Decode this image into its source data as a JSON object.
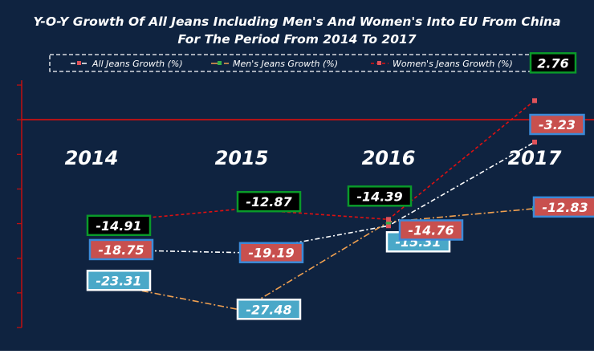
{
  "chart_data": {
    "type": "line",
    "title": "Y-O-Y Growth Of All Jeans Including Men's And Women's Into EU From China",
    "subtitle": "For The Period From 2014 To 2017",
    "xlabel": "",
    "ylabel": "",
    "categories": [
      "2014",
      "2015",
      "2016",
      "2017"
    ],
    "ylim": [
      -30,
      5
    ],
    "grid": false,
    "legend_position": "top",
    "series": [
      {
        "name": "All Jeans Growth (%)",
        "values": [
          -18.75,
          -19.19,
          -15.31,
          -3.23
        ],
        "labels": [
          "-18.75",
          "-19.19",
          "-15.31",
          "-3.23"
        ],
        "color": "#ffffff",
        "marker_color": "#e0535a"
      },
      {
        "name": "Men's Jeans Growth (%)",
        "values": [
          -23.31,
          -27.48,
          -14.76,
          -12.83
        ],
        "labels": [
          "-23.31",
          "-27.48",
          "-14.76",
          "-12.83"
        ],
        "color": "#f0a050",
        "marker_color": "#35b04a"
      },
      {
        "name": "Women's Jeans Growth (%)",
        "values": [
          -14.91,
          -12.87,
          -14.39,
          2.76
        ],
        "labels": [
          "-14.91",
          "-12.87",
          "-14.39",
          "2.76"
        ],
        "color": "#e01010",
        "marker_color": "#e0535a"
      }
    ],
    "colors": {
      "background": "#0f2340",
      "zero_line": "#d01010",
      "label_green_border": "#0a9a2a",
      "label_blue_border": "#3a8ad8",
      "label_cyan_fill": "#4aa8c8",
      "label_red_fill": "#c8504e"
    }
  }
}
